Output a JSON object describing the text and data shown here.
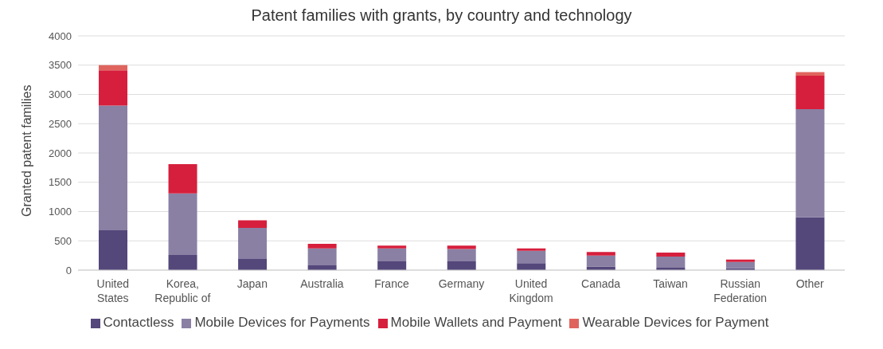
{
  "chart_data": {
    "type": "bar",
    "title": "Patent families with grants, by country and technology",
    "ylabel": "Granted patent families",
    "categories": [
      "United States",
      "Korea, Republic of",
      "Japan",
      "Australia",
      "France",
      "Germany",
      "United Kingdom",
      "Canada",
      "Taiwan",
      "Russian Federation",
      "Other"
    ],
    "stacked": true,
    "ylim": [
      0,
      4000
    ],
    "yticks": [
      0,
      500,
      1000,
      1500,
      2000,
      2500,
      3000,
      3500,
      4000
    ],
    "grid": "y",
    "legend": "bottom",
    "series": [
      {
        "name": "Contactless",
        "color": "#54477a",
        "values": [
          680,
          260,
          190,
          80,
          150,
          150,
          120,
          60,
          40,
          30,
          900
        ]
      },
      {
        "name": "Mobile Devices for Payments",
        "color": "#8a80a4",
        "values": [
          2130,
          1050,
          530,
          290,
          220,
          210,
          210,
          190,
          190,
          110,
          1850
        ]
      },
      {
        "name": "Mobile Wallets and Payment",
        "color": "#d61f3c",
        "values": [
          600,
          500,
          130,
          80,
          50,
          60,
          40,
          60,
          70,
          40,
          570
        ]
      },
      {
        "name": "Wearable Devices for Payment",
        "color": "#e0645e",
        "values": [
          90,
          0,
          0,
          0,
          0,
          0,
          0,
          0,
          0,
          0,
          60
        ]
      }
    ]
  }
}
